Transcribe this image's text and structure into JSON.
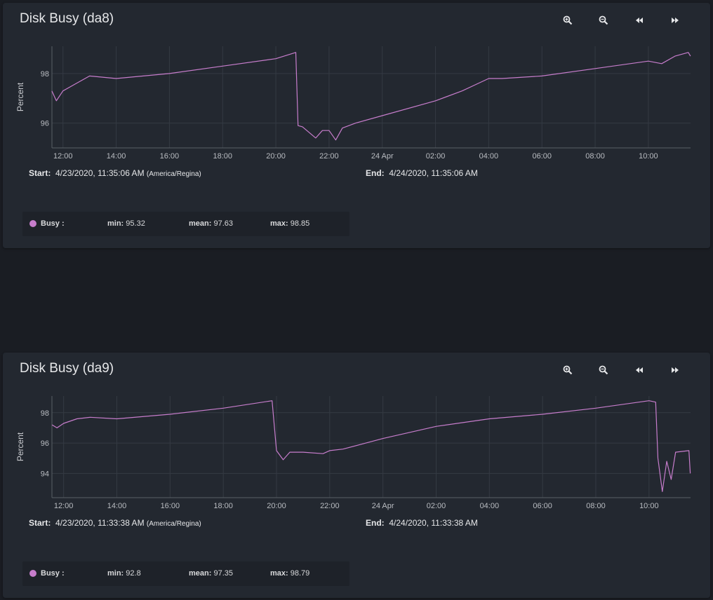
{
  "toolbar_icons": [
    "zoom-in-icon",
    "zoom-out-icon",
    "rewind-icon",
    "fast-forward-icon"
  ],
  "series_color": "#c77dcc",
  "cards": [
    {
      "title": "Disk Busy (da8)",
      "start_label": "Start:",
      "start_value": "4/23/2020, 11:35:06 AM",
      "timezone": "(America/Regina)",
      "end_label": "End:",
      "end_value": "4/24/2020, 11:35:06 AM",
      "legend": {
        "series": "Busy :",
        "min_label": "min:",
        "min": "95.32",
        "mean_label": "mean:",
        "mean": "97.63",
        "max_label": "max:",
        "max": "98.85"
      },
      "chart_data": {
        "type": "line",
        "ylabel": "Percent",
        "x_start": "2020-04-23 11:35:06",
        "x_end": "2020-04-24 11:35:06",
        "x_ticks": [
          "12:00",
          "14:00",
          "16:00",
          "18:00",
          "20:00",
          "22:00",
          "24 Apr",
          "02:00",
          "04:00",
          "06:00",
          "08:00",
          "10:00"
        ],
        "y_ticks": [
          96,
          98
        ],
        "ylim": [
          95.0,
          99.1
        ],
        "grid": true,
        "legend_position": "bottom-left",
        "series": [
          {
            "name": "Busy",
            "x": [
              "2020-04-23 11:35",
              "2020-04-23 11:45",
              "2020-04-23 12:00",
              "2020-04-23 12:30",
              "2020-04-23 13:00",
              "2020-04-23 14:00",
              "2020-04-23 16:00",
              "2020-04-23 18:00",
              "2020-04-23 20:00",
              "2020-04-23 20:45",
              "2020-04-23 20:50",
              "2020-04-23 21:00",
              "2020-04-23 21:30",
              "2020-04-23 21:45",
              "2020-04-23 22:00",
              "2020-04-23 22:15",
              "2020-04-23 22:30",
              "2020-04-23 23:00",
              "2020-04-24 00:00",
              "2020-04-24 02:00",
              "2020-04-24 03:00",
              "2020-04-24 04:00",
              "2020-04-24 04:30",
              "2020-04-24 06:00",
              "2020-04-24 08:00",
              "2020-04-24 10:00",
              "2020-04-24 10:30",
              "2020-04-24 11:00",
              "2020-04-24 11:30",
              "2020-04-24 11:35"
            ],
            "values": [
              97.3,
              96.9,
              97.3,
              97.6,
              97.9,
              97.8,
              98.0,
              98.3,
              98.6,
              98.85,
              95.9,
              95.85,
              95.4,
              95.7,
              95.7,
              95.32,
              95.8,
              96.0,
              96.3,
              96.9,
              97.3,
              97.8,
              97.8,
              97.9,
              98.2,
              98.5,
              98.4,
              98.7,
              98.85,
              98.7
            ]
          }
        ]
      }
    },
    {
      "title": "Disk Busy (da9)",
      "start_label": "Start:",
      "start_value": "4/23/2020, 11:33:38 AM",
      "timezone": "(America/Regina)",
      "end_label": "End:",
      "end_value": "4/24/2020, 11:33:38 AM",
      "legend": {
        "series": "Busy :",
        "min_label": "min:",
        "min": "92.8",
        "mean_label": "mean:",
        "mean": "97.35",
        "max_label": "max:",
        "max": "98.79"
      },
      "chart_data": {
        "type": "line",
        "ylabel": "Percent",
        "x_start": "2020-04-23 11:33:38",
        "x_end": "2020-04-24 11:33:38",
        "x_ticks": [
          "12:00",
          "14:00",
          "16:00",
          "18:00",
          "20:00",
          "22:00",
          "24 Apr",
          "02:00",
          "04:00",
          "06:00",
          "08:00",
          "10:00"
        ],
        "y_ticks": [
          94,
          96,
          98
        ],
        "ylim": [
          92.4,
          99.1
        ],
        "grid": true,
        "legend_position": "bottom-left",
        "series": [
          {
            "name": "Busy",
            "x": [
              "2020-04-23 11:34",
              "2020-04-23 11:45",
              "2020-04-23 12:00",
              "2020-04-23 12:30",
              "2020-04-23 13:00",
              "2020-04-23 14:00",
              "2020-04-23 16:00",
              "2020-04-23 18:00",
              "2020-04-23 19:50",
              "2020-04-23 20:00",
              "2020-04-23 20:15",
              "2020-04-23 20:30",
              "2020-04-23 21:00",
              "2020-04-23 21:45",
              "2020-04-23 22:00",
              "2020-04-23 22:30",
              "2020-04-24 00:00",
              "2020-04-24 02:00",
              "2020-04-24 04:00",
              "2020-04-24 06:00",
              "2020-04-24 08:00",
              "2020-04-24 10:00",
              "2020-04-24 10:15",
              "2020-04-24 10:20",
              "2020-04-24 10:30",
              "2020-04-24 10:40",
              "2020-04-24 10:50",
              "2020-04-24 11:00",
              "2020-04-24 11:30",
              "2020-04-24 11:33"
            ],
            "values": [
              97.2,
              97.0,
              97.3,
              97.6,
              97.7,
              97.6,
              97.9,
              98.3,
              98.79,
              95.5,
              94.9,
              95.4,
              95.4,
              95.3,
              95.5,
              95.6,
              96.3,
              97.1,
              97.6,
              97.9,
              98.3,
              98.79,
              98.7,
              95.0,
              92.8,
              94.8,
              93.6,
              95.4,
              95.5,
              94.0
            ]
          }
        ]
      }
    }
  ]
}
